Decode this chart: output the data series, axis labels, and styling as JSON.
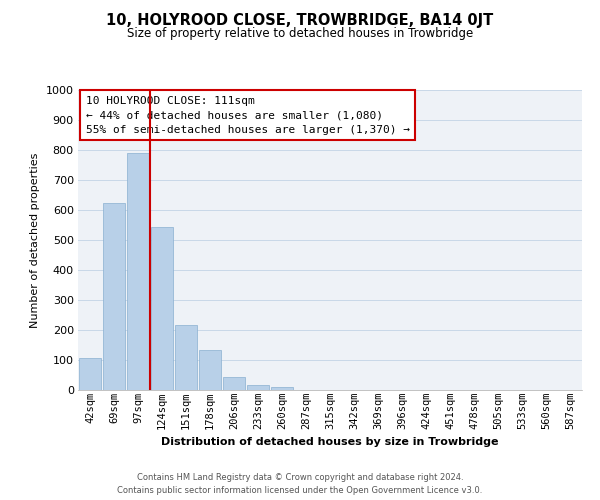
{
  "title": "10, HOLYROOD CLOSE, TROWBRIDGE, BA14 0JT",
  "subtitle": "Size of property relative to detached houses in Trowbridge",
  "xlabel": "Distribution of detached houses by size in Trowbridge",
  "ylabel": "Number of detached properties",
  "bar_labels": [
    "42sqm",
    "69sqm",
    "97sqm",
    "124sqm",
    "151sqm",
    "178sqm",
    "206sqm",
    "233sqm",
    "260sqm",
    "287sqm",
    "315sqm",
    "342sqm",
    "369sqm",
    "396sqm",
    "424sqm",
    "451sqm",
    "478sqm",
    "505sqm",
    "533sqm",
    "560sqm",
    "587sqm"
  ],
  "bar_values": [
    107,
    625,
    790,
    545,
    218,
    133,
    44,
    18,
    10,
    0,
    0,
    0,
    0,
    0,
    0,
    0,
    0,
    0,
    0,
    0,
    0
  ],
  "bar_color": "#b8d0e8",
  "bar_edge_color": "#8ab0d0",
  "vline_x": 2.5,
  "vline_color": "#cc0000",
  "ylim": [
    0,
    1000
  ],
  "yticks": [
    0,
    100,
    200,
    300,
    400,
    500,
    600,
    700,
    800,
    900,
    1000
  ],
  "annotation_title": "10 HOLYROOD CLOSE: 111sqm",
  "annotation_line1": "← 44% of detached houses are smaller (1,080)",
  "annotation_line2": "55% of semi-detached houses are larger (1,370) →",
  "annotation_box_color": "#ffffff",
  "annotation_box_edge": "#cc0000",
  "footer_line1": "Contains HM Land Registry data © Crown copyright and database right 2024.",
  "footer_line2": "Contains public sector information licensed under the Open Government Licence v3.0.",
  "grid_color": "#c8d8e8",
  "background_color": "#eef2f7"
}
